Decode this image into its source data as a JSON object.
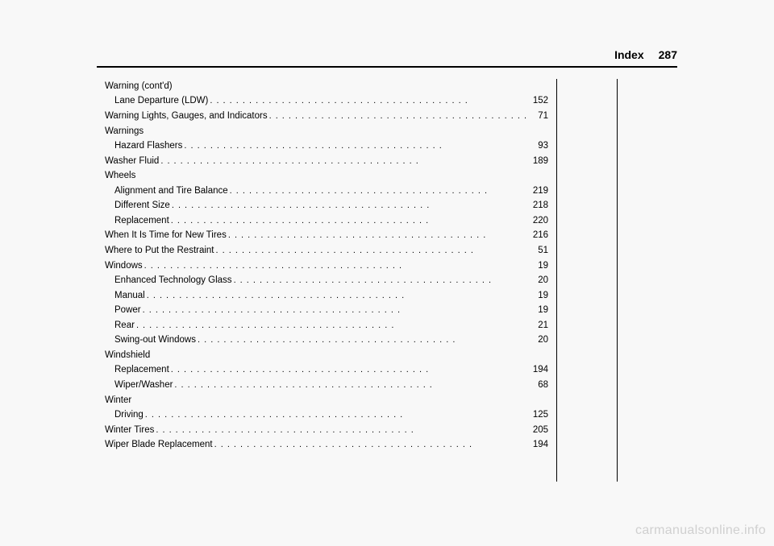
{
  "header": {
    "title": "Index",
    "page_number": "287"
  },
  "index": {
    "entries": [
      {
        "label": "Warning (cont'd)",
        "page": "",
        "sub": false,
        "nodots": true
      },
      {
        "label": "Lane Departure (LDW)",
        "page": "152",
        "sub": true
      },
      {
        "label": "Warning Lights, Gauges, and Indicators",
        "page": "71",
        "sub": false
      },
      {
        "label": "Warnings",
        "page": "",
        "sub": false,
        "nodots": true
      },
      {
        "label": "Hazard Flashers",
        "page": "93",
        "sub": true
      },
      {
        "label": "Washer Fluid",
        "page": "189",
        "sub": false
      },
      {
        "label": "Wheels",
        "page": "",
        "sub": false,
        "nodots": true
      },
      {
        "label": "Alignment and Tire Balance",
        "page": "219",
        "sub": true
      },
      {
        "label": "Different Size",
        "page": "218",
        "sub": true
      },
      {
        "label": "Replacement",
        "page": "220",
        "sub": true
      },
      {
        "label": "When It Is Time for New Tires",
        "page": "216",
        "sub": false
      },
      {
        "label": "Where to Put the Restraint",
        "page": "51",
        "sub": false
      },
      {
        "label": "Windows",
        "page": "19",
        "sub": false
      },
      {
        "label": "Enhanced Technology Glass",
        "page": "20",
        "sub": true
      },
      {
        "label": "Manual",
        "page": "19",
        "sub": true
      },
      {
        "label": "Power",
        "page": "19",
        "sub": true
      },
      {
        "label": "Rear",
        "page": "21",
        "sub": true
      },
      {
        "label": "Swing-out Windows",
        "page": "20",
        "sub": true
      },
      {
        "label": "Windshield",
        "page": "",
        "sub": false,
        "nodots": true
      },
      {
        "label": "Replacement",
        "page": "194",
        "sub": true
      },
      {
        "label": "Wiper/Washer",
        "page": "68",
        "sub": true
      },
      {
        "label": "Winter",
        "page": "",
        "sub": false,
        "nodots": true
      },
      {
        "label": "Driving",
        "page": "125",
        "sub": true
      },
      {
        "label": "Winter Tires",
        "page": "205",
        "sub": false
      },
      {
        "label": "Wiper Blade Replacement",
        "page": "194",
        "sub": false
      }
    ]
  },
  "watermark": "carmanualsonline.info"
}
